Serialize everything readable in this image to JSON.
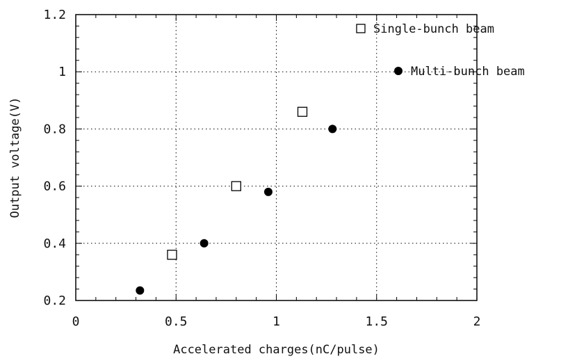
{
  "chart_data": {
    "type": "scatter",
    "xlabel": "Accelerated charges(nC/pulse)",
    "ylabel": "Output voltage(V)",
    "xlim": [
      0,
      2
    ],
    "ylim": [
      0.2,
      1.2
    ],
    "x_ticks": [
      0,
      0.5,
      1,
      1.5,
      2
    ],
    "x_tick_labels": [
      "0",
      "0.5",
      "1",
      "1.5",
      "2"
    ],
    "y_ticks": [
      0.2,
      0.4,
      0.6,
      0.8,
      1,
      1.2
    ],
    "y_tick_labels": [
      "0.2",
      "0.4",
      "0.6",
      "0.8",
      "1",
      "1.2"
    ],
    "grid": true,
    "grid_style": "dotted",
    "legend_position": "top-right, outside plot",
    "series": [
      {
        "name": "Single-bunch beam",
        "marker": "open-square",
        "color": "#000000",
        "points": [
          {
            "x": 0.48,
            "y": 0.36
          },
          {
            "x": 0.8,
            "y": 0.6
          },
          {
            "x": 1.13,
            "y": 0.86
          }
        ]
      },
      {
        "name": "Multi-bunch beam",
        "marker": "filled-circle",
        "color": "#000000",
        "points": [
          {
            "x": 0.32,
            "y": 0.235
          },
          {
            "x": 0.64,
            "y": 0.4
          },
          {
            "x": 0.96,
            "y": 0.58
          },
          {
            "x": 1.28,
            "y": 0.8
          }
        ]
      }
    ]
  }
}
